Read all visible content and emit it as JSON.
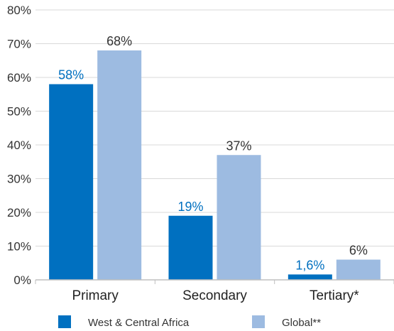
{
  "chart_data": {
    "type": "bar",
    "title": "",
    "xlabel": "",
    "ylabel": "",
    "categories": [
      "Primary",
      "Secondary",
      "Tertiary*"
    ],
    "series": [
      {
        "name": "West & Central Africa",
        "values": [
          58,
          19,
          1.6
        ],
        "labels": [
          "58%",
          "19%",
          "1,6%"
        ],
        "color": "#0070c0",
        "label_color": "#0070c0"
      },
      {
        "name": "Global**",
        "values": [
          68,
          37,
          6
        ],
        "labels": [
          "68%",
          "37%",
          "6%"
        ],
        "color": "#9dbbe1",
        "label_color": "#333333"
      }
    ],
    "ylim": [
      0,
      80
    ],
    "yticks": [
      0,
      10,
      20,
      30,
      40,
      50,
      60,
      70,
      80
    ],
    "ytick_labels": [
      "0%",
      "10%",
      "20%",
      "30%",
      "40%",
      "50%",
      "60%",
      "70%",
      "80%"
    ],
    "grid": true,
    "legend_position": "bottom"
  }
}
